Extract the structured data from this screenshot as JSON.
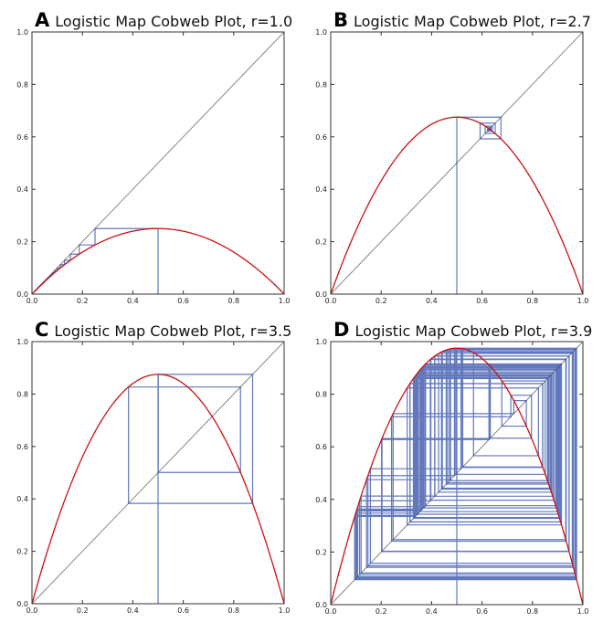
{
  "chart_data": [
    {
      "type": "line",
      "panel": "A",
      "title": "Logistic Map Cobweb Plot, r=1.0",
      "r": 1.0,
      "x0": 0.5,
      "iterations": 100,
      "xlim": [
        0,
        1
      ],
      "ylim": [
        0,
        1
      ],
      "xticks": [
        "0.0",
        "0.2",
        "0.4",
        "0.6",
        "0.8",
        "1.0"
      ],
      "yticks": [
        "0.0",
        "0.2",
        "0.4",
        "0.6",
        "0.8",
        "1.0"
      ],
      "series": [
        {
          "name": "f(x)=r x (1-x)",
          "color": "#cc1111"
        },
        {
          "name": "y=x",
          "color": "#888888"
        },
        {
          "name": "cobweb",
          "color": "#1f3fa0"
        }
      ]
    },
    {
      "type": "line",
      "panel": "B",
      "title": "Logistic Map Cobweb Plot, r=2.7",
      "r": 2.7,
      "x0": 0.5,
      "iterations": 100,
      "xlim": [
        0,
        1
      ],
      "ylim": [
        0,
        1
      ],
      "xticks": [
        "0.0",
        "0.2",
        "0.4",
        "0.6",
        "0.8",
        "1.0"
      ],
      "yticks": [
        "0.0",
        "0.2",
        "0.4",
        "0.6",
        "0.8",
        "1.0"
      ],
      "series": [
        {
          "name": "f(x)=r x (1-x)",
          "color": "#cc1111"
        },
        {
          "name": "y=x",
          "color": "#888888"
        },
        {
          "name": "cobweb",
          "color": "#1f3fa0"
        }
      ]
    },
    {
      "type": "line",
      "panel": "C",
      "title": "Logistic Map Cobweb Plot, r=3.5",
      "r": 3.5,
      "x0": 0.5,
      "iterations": 100,
      "xlim": [
        0,
        1
      ],
      "ylim": [
        0,
        1
      ],
      "xticks": [
        "0.0",
        "0.2",
        "0.4",
        "0.6",
        "0.8",
        "1.0"
      ],
      "yticks": [
        "0.0",
        "0.2",
        "0.4",
        "0.6",
        "0.8",
        "1.0"
      ],
      "series": [
        {
          "name": "f(x)=r x (1-x)",
          "color": "#cc1111"
        },
        {
          "name": "y=x",
          "color": "#888888"
        },
        {
          "name": "cobweb",
          "color": "#1f3fa0"
        }
      ]
    },
    {
      "type": "line",
      "panel": "D",
      "title": "Logistic Map Cobweb Plot, r=3.9",
      "r": 3.9,
      "x0": 0.5,
      "iterations": 100,
      "xlim": [
        0,
        1
      ],
      "ylim": [
        0,
        1
      ],
      "xticks": [
        "0.0",
        "0.2",
        "0.4",
        "0.6",
        "0.8",
        "1.0"
      ],
      "yticks": [
        "0.0",
        "0.2",
        "0.4",
        "0.6",
        "0.8",
        "1.0"
      ],
      "series": [
        {
          "name": "f(x)=r x (1-x)",
          "color": "#cc1111"
        },
        {
          "name": "y=x",
          "color": "#888888"
        },
        {
          "name": "cobweb",
          "color": "#1f3fa0"
        }
      ]
    }
  ]
}
